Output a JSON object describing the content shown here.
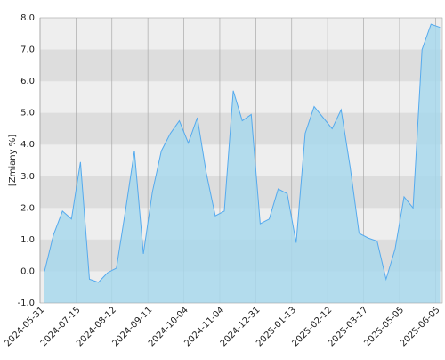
{
  "chart_data": {
    "type": "area",
    "y_label": "[Zmiany %]",
    "categories": [
      null,
      null,
      null,
      null,
      null,
      null,
      null,
      null,
      null,
      null,
      null,
      null,
      null,
      null,
      null,
      null,
      null,
      null,
      null,
      null,
      null,
      null,
      null,
      null,
      null,
      null,
      null,
      null,
      null,
      null,
      null,
      null,
      null,
      null,
      null,
      null,
      null,
      null,
      null,
      null,
      null,
      null,
      null,
      null,
      null
    ],
    "values": [
      0.0,
      1.15,
      1.9,
      1.65,
      3.45,
      -0.25,
      -0.35,
      -0.05,
      0.1,
      1.9,
      3.8,
      0.55,
      2.5,
      3.8,
      4.35,
      4.75,
      4.05,
      4.85,
      3.1,
      1.75,
      1.9,
      5.7,
      4.75,
      4.95,
      1.5,
      1.65,
      2.6,
      2.45,
      0.9,
      4.35,
      5.2,
      4.85,
      4.5,
      5.1,
      3.3,
      1.2,
      1.05,
      0.95,
      -0.25,
      0.7,
      2.35,
      2.0,
      7.0,
      7.8,
      7.7
    ],
    "color": "#55aaee",
    "fill": "#a8d8ec",
    "ylim": [
      -1,
      8
    ],
    "yticks": [
      {
        "value": -1,
        "label": "-1.0"
      },
      {
        "value": 0,
        "label": "0.0"
      },
      {
        "value": 1,
        "label": "1.0"
      },
      {
        "value": 2,
        "label": "2.0"
      },
      {
        "value": 3,
        "label": "3.0"
      },
      {
        "value": 4,
        "label": "4.0"
      },
      {
        "value": 5,
        "label": "5.0"
      },
      {
        "value": 6,
        "label": "6.0"
      },
      {
        "value": 7,
        "label": "7.0"
      },
      {
        "value": 8,
        "label": "8.0"
      }
    ],
    "xtick_labels": [
      "2024-05-31",
      "2024-07-15",
      "2024-08-12",
      "2024-09-11",
      "2024-10-04",
      "2024-11-04",
      "2024-12-31",
      "2025-01-13",
      "2025-02-12",
      "2025-03-17",
      "2025-05-05",
      "2025-06-05"
    ]
  }
}
